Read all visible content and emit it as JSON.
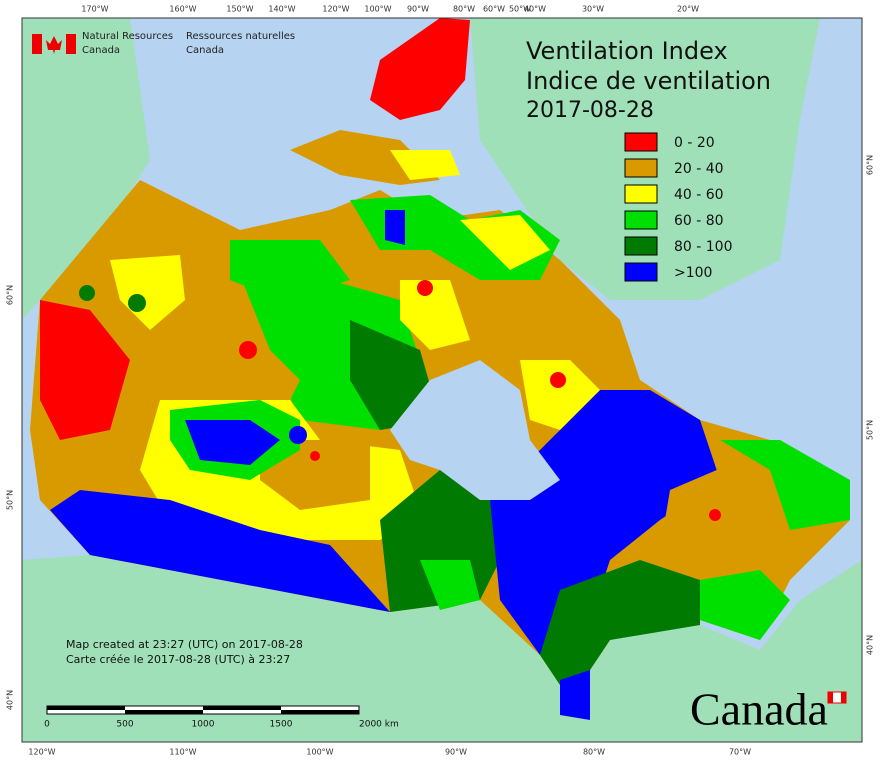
{
  "title": [
    "Ventilation Index",
    "Indice de ventilation",
    "2017-08-28"
  ],
  "agency": {
    "en": [
      "Natural Resources",
      "Canada"
    ],
    "fr": [
      "Ressources naturelles",
      "Canada"
    ]
  },
  "legend": [
    {
      "label": "0 - 20",
      "color": "#ff0000"
    },
    {
      "label": "20 - 40",
      "color": "#d99a00"
    },
    {
      "label": "40 - 60",
      "color": "#ffff00"
    },
    {
      "label": "60 - 80",
      "color": "#00e000"
    },
    {
      "label": "80 - 100",
      "color": "#007a00"
    },
    {
      "label": ">100",
      "color": "#0000ff"
    }
  ],
  "top_labels": [
    "170°W",
    "160°W",
    "150°W",
    "140°W",
    "120°W",
    "100°W",
    "90°W",
    "80°W",
    "60°W",
    "50°W",
    "40°W",
    "30°W",
    "20°W"
  ],
  "bottom_labels": [
    "120°W",
    "110°W",
    "100°W",
    "90°W",
    "80°W",
    "70°W"
  ],
  "left_labels": [
    "60°N",
    "50°N",
    "40°N"
  ],
  "right_labels": [
    "60°N",
    "50°N",
    "40°N"
  ],
  "notes": [
    "Map created at 23:27 (UTC) on 2017-08-28",
    "Carte créée le 2017-08-28 (UTC) à 23:27"
  ],
  "scale_labels": [
    "0",
    "500",
    "1000",
    "1500",
    "2000 km"
  ],
  "wordmark": "Canada"
}
